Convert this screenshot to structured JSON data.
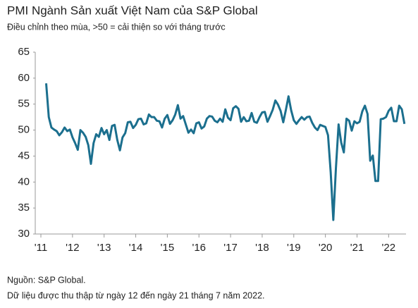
{
  "chart_data": {
    "type": "line",
    "title": "PMI Ngành Sản xuất Việt Nam của S&P Global",
    "subtitle": "Điều chỉnh theo mùa, >50 = cải thiện so với tháng trước",
    "source": "Nguồn: S&P Global.",
    "note": "Dữ liệu được thu thập từ ngày 12 đến ngày 21 tháng 7 năm 2022.",
    "x": [
      2011.167,
      2011.25,
      2011.333,
      2011.417,
      2011.5,
      2011.583,
      2011.667,
      2011.75,
      2011.833,
      2011.917,
      2012,
      2012.083,
      2012.167,
      2012.25,
      2012.333,
      2012.417,
      2012.5,
      2012.583,
      2012.667,
      2012.75,
      2012.833,
      2012.917,
      2013,
      2013.083,
      2013.167,
      2013.25,
      2013.333,
      2013.417,
      2013.5,
      2013.583,
      2013.667,
      2013.75,
      2013.833,
      2013.917,
      2014,
      2014.083,
      2014.167,
      2014.25,
      2014.333,
      2014.417,
      2014.5,
      2014.583,
      2014.667,
      2014.75,
      2014.833,
      2014.917,
      2015,
      2015.083,
      2015.167,
      2015.25,
      2015.333,
      2015.417,
      2015.5,
      2015.583,
      2015.667,
      2015.75,
      2015.833,
      2015.917,
      2016,
      2016.083,
      2016.167,
      2016.25,
      2016.333,
      2016.417,
      2016.5,
      2016.583,
      2016.667,
      2016.75,
      2016.833,
      2016.917,
      2017,
      2017.083,
      2017.167,
      2017.25,
      2017.333,
      2017.417,
      2017.5,
      2017.583,
      2017.667,
      2017.75,
      2017.833,
      2017.917,
      2018,
      2018.083,
      2018.167,
      2018.25,
      2018.333,
      2018.417,
      2018.5,
      2018.583,
      2018.667,
      2018.75,
      2018.833,
      2018.917,
      2019,
      2019.083,
      2019.167,
      2019.25,
      2019.333,
      2019.417,
      2019.5,
      2019.583,
      2019.667,
      2019.75,
      2019.833,
      2019.917,
      2020,
      2020.083,
      2020.167,
      2020.25,
      2020.333,
      2020.417,
      2020.5,
      2020.583,
      2020.667,
      2020.75,
      2020.833,
      2020.917,
      2021,
      2021.083,
      2021.167,
      2021.25,
      2021.333,
      2021.417,
      2021.5,
      2021.583,
      2021.667,
      2021.75,
      2021.833,
      2021.917,
      2022,
      2022.083,
      2022.167,
      2022.25,
      2022.333,
      2022.417,
      2022.5
    ],
    "series": [
      {
        "color": "#1b6f8e",
        "values": [
          59.0,
          52.5,
          50.5,
          50.1,
          49.8,
          49.0,
          49.6,
          50.5,
          49.8,
          50.1,
          48.6,
          47.5,
          46.2,
          50.0,
          49.5,
          48.7,
          47.1,
          43.5,
          47.5,
          49.2,
          48.7,
          50.4,
          49.2,
          50.0,
          48.1,
          50.8,
          51.0,
          48.1,
          46.1,
          48.6,
          49.4,
          51.5,
          51.6,
          50.4,
          51.0,
          52.1,
          52.2,
          51.1,
          51.3,
          53.0,
          52.5,
          52.5,
          51.8,
          51.7,
          50.5,
          52.2,
          52.9,
          51.2,
          51.9,
          53.0,
          54.8,
          52.2,
          52.7,
          51.1,
          49.5,
          50.1,
          49.4,
          51.3,
          51.5,
          50.3,
          50.7,
          52.2,
          52.7,
          52.6,
          51.8,
          51.5,
          52.2,
          51.6,
          54.0,
          52.4,
          51.9,
          54.2,
          54.6,
          54.1,
          51.6,
          52.5,
          51.7,
          51.8,
          53.3,
          51.6,
          51.4,
          52.5,
          53.4,
          53.5,
          51.6,
          52.7,
          53.9,
          55.7,
          54.9,
          53.7,
          51.5,
          53.9,
          56.5,
          53.8,
          51.9,
          51.2,
          51.9,
          52.5,
          52.0,
          52.5,
          52.6,
          51.4,
          50.5,
          50.0,
          51.0,
          50.8,
          50.6,
          49.0,
          41.9,
          32.7,
          42.7,
          51.1,
          47.6,
          45.7,
          52.2,
          51.8,
          49.9,
          51.7,
          51.3,
          51.6,
          53.6,
          54.7,
          53.1,
          44.1,
          45.1,
          40.2,
          40.2,
          52.1,
          52.2,
          52.5,
          53.7,
          54.3,
          51.7,
          51.7,
          54.7,
          54.0,
          51.2
        ]
      }
    ],
    "xlim": [
      2011,
      2022.55
    ],
    "xticks": [
      {
        "value": 2011,
        "label": "'11"
      },
      {
        "value": 2012,
        "label": "'12"
      },
      {
        "value": 2013,
        "label": "'13"
      },
      {
        "value": 2014,
        "label": "'14"
      },
      {
        "value": 2015,
        "label": "'15"
      },
      {
        "value": 2016,
        "label": "'16"
      },
      {
        "value": 2017,
        "label": "'17"
      },
      {
        "value": 2018,
        "label": "'18"
      },
      {
        "value": 2019,
        "label": "'19"
      },
      {
        "value": 2020,
        "label": "'20"
      },
      {
        "value": 2021,
        "label": "'21"
      },
      {
        "value": 2022,
        "label": "'22"
      }
    ],
    "ylim": [
      30,
      65
    ],
    "yticks": [
      30,
      35,
      40,
      45,
      50,
      55,
      60,
      65
    ]
  }
}
